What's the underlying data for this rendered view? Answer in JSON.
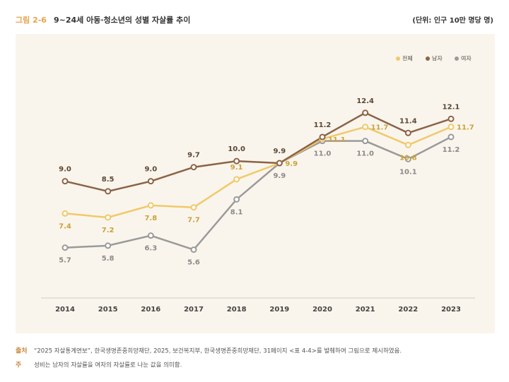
{
  "chart_data": {
    "type": "line",
    "figure_label": "그림 2-6",
    "title": "9~24세 아동·청소년의 성별 자살률 추이",
    "unit": "(단위: 인구 10만 명당 명)",
    "categories": [
      "2014",
      "2015",
      "2016",
      "2017",
      "2018",
      "2019",
      "2020",
      "2021",
      "2022",
      "2023"
    ],
    "ylim": [
      3.2,
      15.9
    ],
    "series": [
      {
        "name": "전체",
        "color": "#f0c96a",
        "label_color": "#c9a23c",
        "values": [
          7.4,
          7.2,
          7.8,
          7.7,
          9.1,
          9.9,
          11.1,
          11.7,
          10.8,
          11.7
        ],
        "value_labels": [
          "7.4",
          "7.2",
          "7.8",
          "7.7",
          "9.1",
          "9.9",
          "11.1",
          "11.7",
          "10.8",
          "11.7"
        ]
      },
      {
        "name": "남자",
        "color": "#8b6347",
        "label_color": "#5a4636",
        "values": [
          9.0,
          8.5,
          9.0,
          9.7,
          10.0,
          9.9,
          11.2,
          12.4,
          11.4,
          12.1
        ],
        "value_labels": [
          "9.0",
          "8.5",
          "9.0",
          "9.7",
          "10.0",
          "9.9",
          "11.2",
          "12.4",
          "11.4",
          "12.1"
        ]
      },
      {
        "name": "여자",
        "color": "#9a9a9a",
        "label_color": "#8a8a8a",
        "values": [
          5.7,
          5.8,
          6.3,
          5.6,
          8.1,
          9.9,
          11.0,
          11.0,
          10.1,
          11.2
        ],
        "value_labels": [
          "5.7",
          "5.8",
          "6.3",
          "5.6",
          "8.1",
          "9.9",
          "11.0",
          "11.0",
          "10.1",
          "11.2"
        ]
      }
    ],
    "notes": [
      {
        "key": "출처",
        "text": "“2025 자살통계연보”, 한국생명존중희망재단, 2025, 보건복지부, 한국생명존중희망재단, 31페이지 <표 4-4>를 발췌하여 그림으로 제시하였음."
      },
      {
        "key": "주",
        "text": "성비는 남자의 자살률을 여자의 자살률로 나눈 값을 의미함."
      }
    ]
  }
}
